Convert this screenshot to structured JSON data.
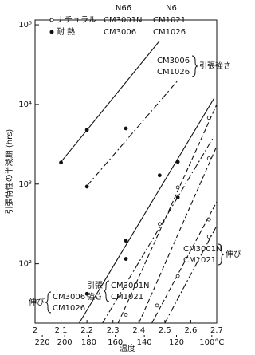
{
  "chart_data": {
    "type": "arrhenius",
    "title": null,
    "x_label": "温度",
    "y_label": "引張特性の半減期 (hrs)",
    "xlim": [
      2.0,
      2.7
    ],
    "xticks": [
      2.0,
      2.1,
      2.2,
      2.3,
      2.4,
      2.5,
      2.6,
      2.7
    ],
    "temp_ticks": [
      {
        "value": 2.028,
        "label": "220"
      },
      {
        "value": 2.114,
        "label": "200"
      },
      {
        "value": 2.207,
        "label": "180"
      },
      {
        "value": 2.309,
        "label": "160"
      },
      {
        "value": 2.421,
        "label": "140"
      },
      {
        "value": 2.545,
        "label": "120"
      },
      {
        "value": 2.681,
        "label": "100°C"
      }
    ],
    "ylim": [
      18,
      115000
    ],
    "log_y": true,
    "yticks": [
      {
        "value": 100,
        "label": "10²"
      },
      {
        "value": 1000,
        "label": "10³"
      },
      {
        "value": 10000,
        "label": "10⁴"
      },
      {
        "value": 100000,
        "label": "10⁵"
      }
    ],
    "legend": {
      "n66": "N66",
      "n6": "N6",
      "natural": "ナチュラル",
      "natural_n66": "CM3001N",
      "natural_n6": "CM1021",
      "heat": "耐 熱",
      "heat_n66": "CM3006",
      "heat_n6": "CM1026"
    },
    "lines": [
      {
        "style": "solid",
        "x": [
          2.1,
          2.48
        ],
        "values": [
          1900,
          63000
        ]
      },
      {
        "style": "dashdot",
        "x": [
          2.2,
          2.55
        ],
        "values": [
          950,
          20000
        ]
      },
      {
        "style": "solid",
        "x": [
          2.17,
          2.69
        ],
        "values": [
          18,
          12000
        ]
      },
      {
        "style": "dashdot",
        "x": [
          2.26,
          2.69
        ],
        "values": [
          18,
          4000
        ]
      },
      {
        "style": "dashed",
        "x": [
          2.32,
          2.7
        ],
        "values": [
          18,
          10000
        ]
      },
      {
        "style": "dashed",
        "x": [
          2.4,
          2.7
        ],
        "values": [
          18,
          3000
        ]
      },
      {
        "style": "dashed",
        "x": [
          2.45,
          2.7
        ],
        "values": [
          18,
          600
        ]
      },
      {
        "style": "dashdot",
        "x": [
          2.5,
          2.7
        ],
        "values": [
          18,
          300
        ]
      }
    ],
    "series": [
      {
        "marker": "filled",
        "x": [
          2.1,
          2.2,
          2.2,
          2.35,
          2.2,
          2.35,
          2.35,
          2.48,
          2.55,
          2.55
        ],
        "values": [
          1860,
          4800,
          930,
          5000,
          42,
          195,
          115,
          1290,
          1900,
          680
        ]
      },
      {
        "marker": "open",
        "x": [
          2.35,
          2.48,
          2.55,
          2.67,
          2.67,
          2.47,
          2.55,
          2.67,
          2.67
        ],
        "values": [
          23,
          316,
          910,
          6800,
          2100,
          30,
          70,
          360,
          220
        ]
      }
    ],
    "annotations": [
      {
        "lines": [
          "CM3006",
          "CM1026"
        ],
        "side": "引張強さ"
      },
      {
        "lines": [
          "CM3001N",
          "CM1021"
        ],
        "side": "伸び"
      },
      {
        "lines": [
          "CM3006",
          "CM1026"
        ],
        "side": "伸び"
      },
      {
        "lines": [
          "CM3001N",
          "CM1021"
        ],
        "side": "引張\n強さ"
      }
    ]
  }
}
